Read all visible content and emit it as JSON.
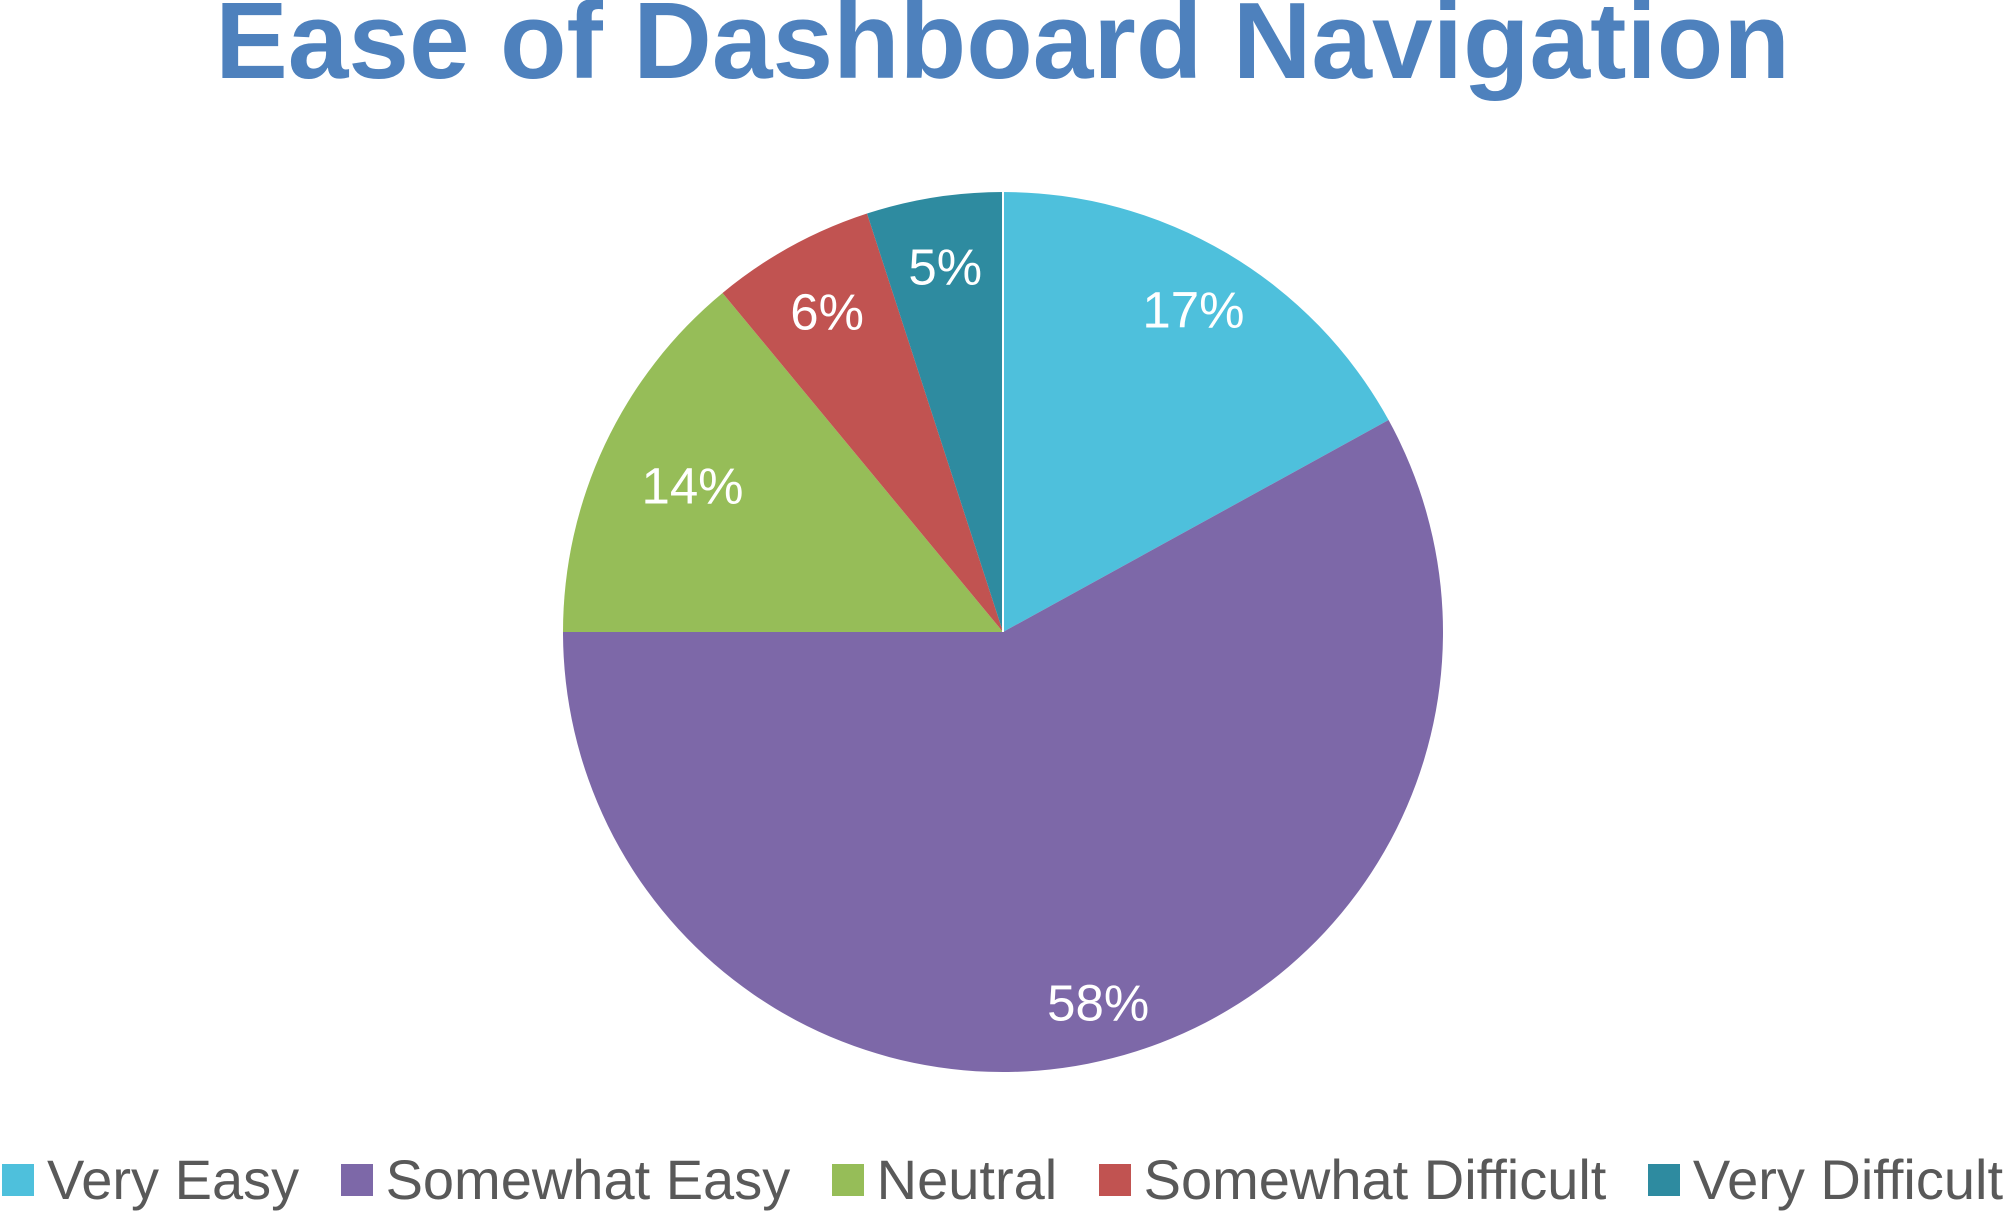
{
  "chart_data": {
    "type": "pie",
    "title": "Ease of Dashboard Navigation",
    "categories": [
      "Very Easy",
      "Somewhat Easy",
      "Neutral",
      "Somewhat Difficult",
      "Very Difficult"
    ],
    "values": [
      17,
      58,
      14,
      6,
      5
    ],
    "slice_labels": [
      "17%",
      "58%",
      "14%",
      "6%",
      "5%"
    ],
    "colors": [
      "#4EC0DC",
      "#7D68A8",
      "#96BD58",
      "#C15351",
      "#2E8BA0"
    ],
    "start_angle_deg": 0,
    "direction": "clockwise",
    "legend_position": "bottom",
    "grid": false
  },
  "styles": {
    "title_color": "#4E81BD",
    "slice_label_color": "#FFFFFF",
    "legend_text_color": "#595959",
    "background_color": "#FFFFFF"
  }
}
